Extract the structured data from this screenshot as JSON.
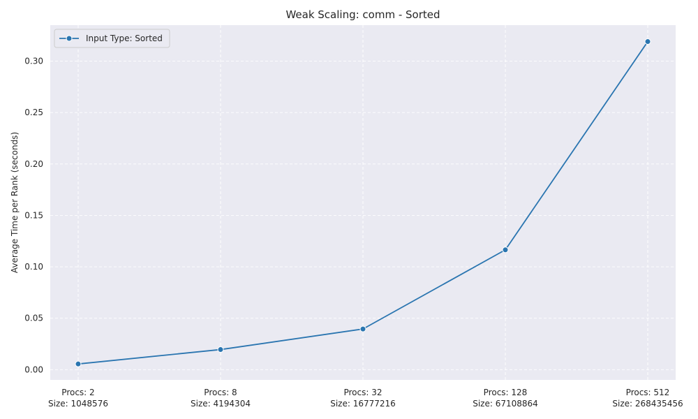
{
  "chart_data": {
    "type": "line",
    "title": "Weak Scaling: comm - Sorted",
    "xlabel": "",
    "ylabel": "Average Time per Rank (seconds)",
    "categories": [
      [
        "Procs: 2",
        "Size: 1048576"
      ],
      [
        "Procs: 8",
        "Size: 4194304"
      ],
      [
        "Procs: 32",
        "Size: 16777216"
      ],
      [
        "Procs: 128",
        "Size: 67108864"
      ],
      [
        "Procs: 512",
        "Size: 268435456"
      ]
    ],
    "series": [
      {
        "name": "Input Type: Sorted",
        "values": [
          0.0055,
          0.0195,
          0.0395,
          0.1165,
          0.319
        ],
        "color": "#2a75b0"
      }
    ],
    "ylim": [
      -0.01,
      0.335
    ],
    "yticks": [
      0.0,
      0.05,
      0.1,
      0.15,
      0.2,
      0.25,
      0.3
    ],
    "ytick_labels": [
      "0.00",
      "0.05",
      "0.10",
      "0.15",
      "0.20",
      "0.25",
      "0.30"
    ],
    "grid": true,
    "grid_style": "dashed",
    "legend_position": "top-left",
    "background_color": "#eaeaf2"
  }
}
